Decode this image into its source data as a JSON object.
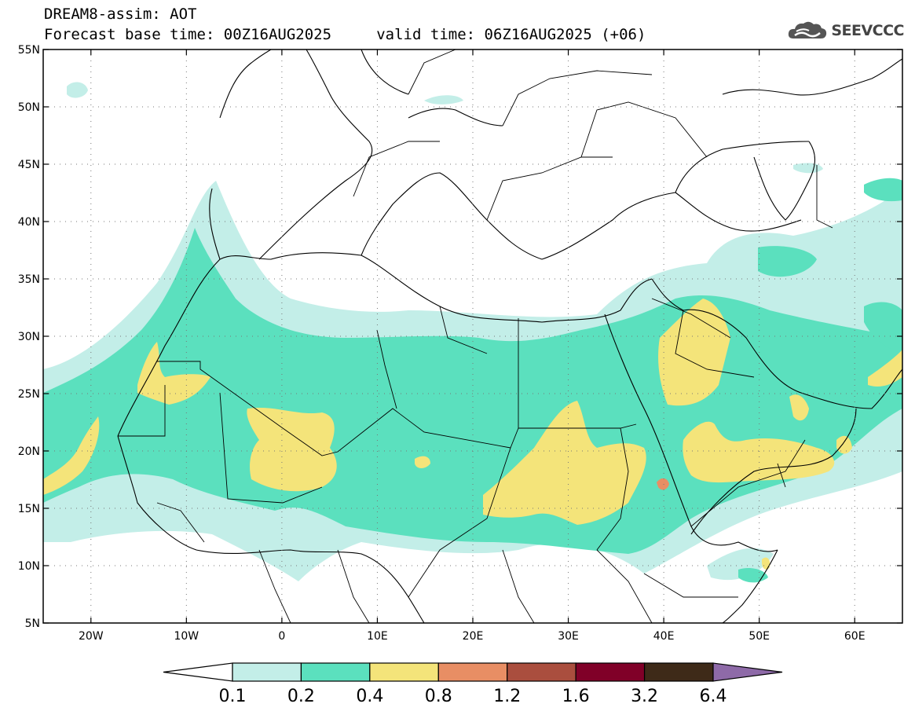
{
  "header": {
    "title_line1": "DREAM8-assim: AOT",
    "title_line2": "Forecast base time: 00Z16AUG2025     valid time: 06Z16AUG2025 (+06)",
    "logo_text": "SEEVCCC"
  },
  "map": {
    "lon_range": [
      -25,
      65
    ],
    "lat_range": [
      5,
      55
    ],
    "lon_ticks": [
      {
        "value": -20,
        "label": "20W"
      },
      {
        "value": -10,
        "label": "10W"
      },
      {
        "value": 0,
        "label": "0"
      },
      {
        "value": 10,
        "label": "10E"
      },
      {
        "value": 20,
        "label": "20E"
      },
      {
        "value": 30,
        "label": "30E"
      },
      {
        "value": 40,
        "label": "40E"
      },
      {
        "value": 50,
        "label": "50E"
      },
      {
        "value": 60,
        "label": "60E"
      }
    ],
    "lat_ticks": [
      {
        "value": 55,
        "label": "55N"
      },
      {
        "value": 50,
        "label": "50N"
      },
      {
        "value": 45,
        "label": "45N"
      },
      {
        "value": 40,
        "label": "40N"
      },
      {
        "value": 35,
        "label": "35N"
      },
      {
        "value": 30,
        "label": "30N"
      },
      {
        "value": 25,
        "label": "25N"
      },
      {
        "value": 20,
        "label": "20N"
      },
      {
        "value": 15,
        "label": "15N"
      },
      {
        "value": 10,
        "label": "10N"
      },
      {
        "value": 5,
        "label": "5N"
      }
    ],
    "grid": "dotted"
  },
  "legend": {
    "levels": [
      "0.1",
      "0.2",
      "0.4",
      "0.8",
      "1.2",
      "1.6",
      "3.2",
      "6.4"
    ],
    "colors": [
      "#c3eee8",
      "#5be0be",
      "#f4e47a",
      "#e88e64",
      "#aa4e3e",
      "#800028",
      "#3e2a18",
      "#8e6aa8"
    ],
    "below_color": "#ffffff"
  }
}
